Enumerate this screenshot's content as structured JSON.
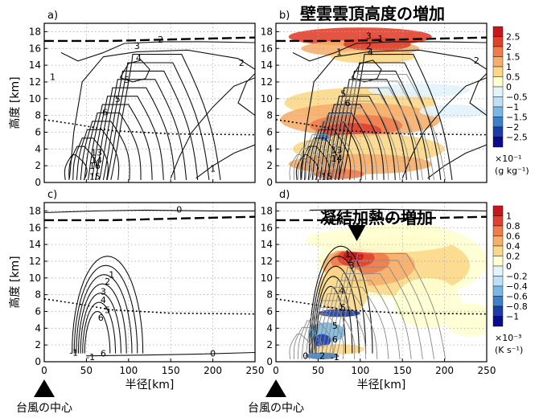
{
  "chart_data": [
    {
      "type": "contour",
      "panel": "a)",
      "xlim": [
        0,
        250
      ],
      "ylim": [
        0,
        19
      ],
      "xticks": [
        0,
        50,
        100,
        150,
        200,
        250
      ],
      "yticks": [
        0,
        2,
        4,
        6,
        8,
        10,
        12,
        14,
        16,
        18
      ],
      "ylabel": "高度 [km]",
      "contour_labels": [
        "1",
        "2",
        "3",
        "4",
        "5",
        "5",
        "6",
        "13",
        "14",
        "16",
        "15",
        "1",
        "2"
      ]
    },
    {
      "type": "contour",
      "panel": "b)",
      "title": "壁雲雲頂高度の増加",
      "xlim": [
        0,
        250
      ],
      "ylim": [
        0,
        19
      ],
      "xticks": [
        0,
        50,
        100,
        150,
        200,
        250
      ],
      "yticks": [
        0,
        2,
        4,
        6,
        8,
        10,
        12,
        14,
        16,
        18
      ],
      "contour_labels": [
        "1",
        "2",
        "3",
        "4",
        "5",
        "6",
        "13",
        "14",
        "15",
        "1",
        "2"
      ],
      "colorbar": {
        "levels": [
          "2.5",
          "2",
          "1.5",
          "1",
          "0.5",
          "0",
          "−0.5",
          "−1",
          "−1.5",
          "−2",
          "−2.5"
        ],
        "colors": [
          "#c8161e",
          "#e0412d",
          "#ef7c4d",
          "#f6ae6c",
          "#fbd889",
          "#ffffd2",
          "#e2f3fb",
          "#bde0f4",
          "#7ab8e3",
          "#3d7fc8",
          "#1c3ca8",
          "#0a0a8c"
        ],
        "scale": "×10⁻¹",
        "unit": "(g kg⁻¹)"
      }
    },
    {
      "type": "contour",
      "panel": "c)",
      "xlim": [
        0,
        250
      ],
      "ylim": [
        0,
        19
      ],
      "xticks": [
        0,
        50,
        100,
        150,
        200,
        250
      ],
      "yticks": [
        0,
        2,
        4,
        6,
        8,
        10,
        12,
        14,
        16,
        18
      ],
      "ylabel": "高度 [km]",
      "xlabel": "半径[km]",
      "contour_labels": [
        "0",
        "1",
        "2",
        "3",
        "4",
        "5",
        "6",
        "6",
        "0",
        "-1",
        "-1"
      ]
    },
    {
      "type": "contour",
      "panel": "d)",
      "title": "凝結加熱の増加",
      "xlim": [
        0,
        250
      ],
      "ylim": [
        0,
        19
      ],
      "xticks": [
        0,
        50,
        100,
        150,
        200,
        250
      ],
      "yticks": [
        0,
        2,
        4,
        6,
        8,
        10,
        12,
        14,
        16,
        18
      ],
      "xlabel": "半径[km]",
      "contour_labels": [
        "1",
        "2",
        "3",
        "4",
        "5",
        "5",
        "6",
        "0",
        "2",
        "-1"
      ],
      "colorbar": {
        "levels": [
          "1",
          "0.8",
          "0.6",
          "0.4",
          "0.2",
          "0",
          "−0.2",
          "−0.4",
          "−0.6",
          "−0.8",
          "−1"
        ],
        "colors": [
          "#c8161e",
          "#e0412d",
          "#ef7c4d",
          "#f6ae6c",
          "#fbd889",
          "#ffffd2",
          "#e2f3fb",
          "#bde0f4",
          "#7ab8e3",
          "#3d7fc8",
          "#1c3ca8",
          "#0a0a8c"
        ],
        "scale": "×10⁻³",
        "unit": "(K s⁻¹)"
      }
    }
  ],
  "annotations": {
    "center_label": "台風の中心"
  }
}
